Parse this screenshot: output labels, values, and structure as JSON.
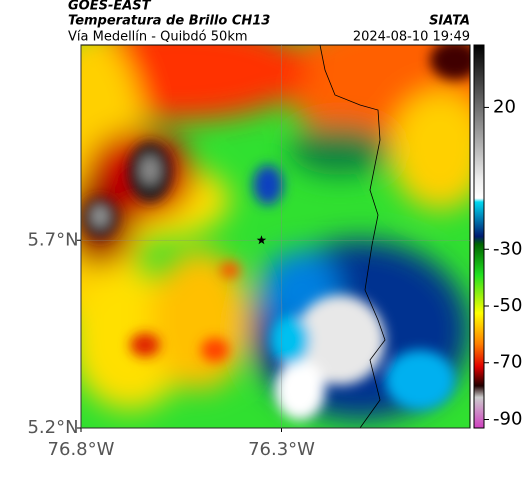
{
  "header": {
    "title": "GOES-EAST",
    "subtitle": "Temperatura de Brillo CH13",
    "location": "Vía Medellín - Quibdó 50km",
    "source": "SIATA",
    "timestamp": "2024-08-10 19:49"
  },
  "map": {
    "xlim": [
      -76.8,
      -75.83
    ],
    "ylim": [
      5.2,
      6.22
    ],
    "xticks": [
      {
        "value": -76.8,
        "label": "76.8°W"
      },
      {
        "value": -76.3,
        "label": "76.3°W"
      }
    ],
    "yticks": [
      {
        "value": 5.2,
        "label": "5.2°N"
      },
      {
        "value": 5.7,
        "label": "5.7°N"
      }
    ],
    "grid": true,
    "station": {
      "lon": -76.35,
      "lat": 5.7
    }
  },
  "colorbar": {
    "lim": [
      -93,
      42
    ],
    "ticks": [
      20,
      -30,
      -50,
      -70,
      -90
    ]
  }
}
